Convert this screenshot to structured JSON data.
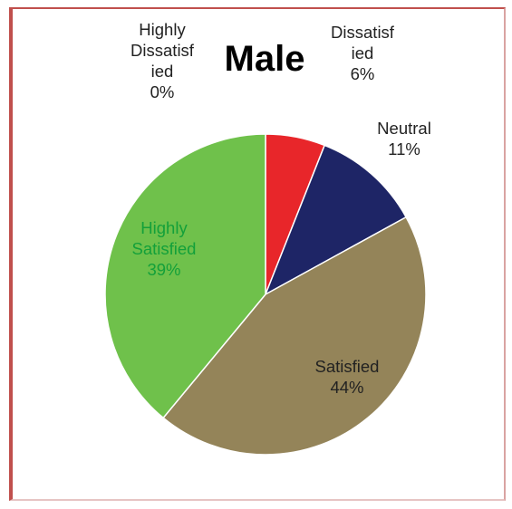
{
  "chart_data": {
    "type": "pie",
    "title": "Male",
    "slices": [
      {
        "label": [
          "Dissatisf",
          "ied"
        ],
        "percent_label": "6%",
        "value": 6,
        "color": "#e8262a",
        "label_color": "#222222"
      },
      {
        "label": [
          "Neutral"
        ],
        "percent_label": "11%",
        "value": 11,
        "color": "#1e2566",
        "label_color": "#222222"
      },
      {
        "label": [
          "Satisfied"
        ],
        "percent_label": "44%",
        "value": 44,
        "color": "#948459",
        "label_color": "#222222"
      },
      {
        "label": [
          "Highly",
          "Satisfied"
        ],
        "percent_label": "39%",
        "value": 39,
        "color": "#6fc14b",
        "label_color": "#13a03a"
      },
      {
        "label": [
          "Highly",
          "Dissatisf",
          "ied"
        ],
        "percent_label": "0%",
        "value": 0,
        "color": "#4f81bd",
        "label_color": "#222222"
      }
    ],
    "legend": "none"
  }
}
